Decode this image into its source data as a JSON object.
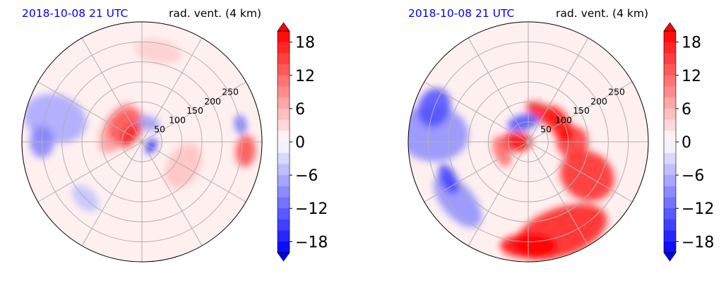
{
  "colors": {
    "title_left": "#0000ff",
    "title_right": "#000000",
    "neg_strong": "#0000ff",
    "neutral": "#ffffff",
    "pos_strong": "#ff0000",
    "grid": "#b0b0b0"
  },
  "chart_data": [
    {
      "type": "heatmap",
      "projection": "polar",
      "title_left": "2018-10-08 21 UTC",
      "title_right": "rad. vent. (4 km)",
      "range_rings": [
        50,
        100,
        150,
        200,
        250
      ],
      "range_max": 300,
      "radial_lines_deg": [
        0,
        30,
        60,
        90,
        120,
        150,
        180,
        210,
        240,
        270,
        300,
        330
      ],
      "colorbar": {
        "ticks": [
          "18",
          "12",
          "6",
          "0",
          "−6",
          "−12",
          "−18"
        ],
        "tick_values": [
          18,
          12,
          6,
          0,
          -6,
          -12,
          -18
        ],
        "vmin": -20,
        "vmax": 20,
        "levels": 20,
        "extend": "both"
      },
      "features": [
        {
          "az": 300,
          "r": 70,
          "w": 70,
          "h": 35,
          "v": 8
        },
        {
          "az": 315,
          "r": 55,
          "w": 50,
          "h": 40,
          "v": 13
        },
        {
          "az": 300,
          "r": 35,
          "w": 35,
          "h": 18,
          "v": 17
        },
        {
          "az": 20,
          "r": 50,
          "w": 28,
          "h": 18,
          "v": -8
        },
        {
          "az": 115,
          "r": 25,
          "w": 20,
          "h": 12,
          "v": -17
        },
        {
          "az": 285,
          "r": 225,
          "w": 60,
          "h": 80,
          "v": -7
        },
        {
          "az": 270,
          "r": 250,
          "w": 40,
          "h": 30,
          "v": -10
        },
        {
          "az": 95,
          "r": 260,
          "w": 40,
          "h": 25,
          "v": 14
        },
        {
          "az": 80,
          "r": 250,
          "w": 25,
          "h": 15,
          "v": -11
        },
        {
          "az": 120,
          "r": 120,
          "w": 60,
          "h": 40,
          "v": 5
        },
        {
          "az": 225,
          "r": 200,
          "w": 40,
          "h": 25,
          "v": -5
        },
        {
          "az": 10,
          "r": 230,
          "w": 60,
          "h": 30,
          "v": 4
        }
      ]
    },
    {
      "type": "heatmap",
      "projection": "polar",
      "title_left": "2018-10-08 21 UTC",
      "title_right": "rad. vent. (4 km)",
      "range_rings": [
        50,
        100,
        150,
        200,
        250
      ],
      "range_max": 300,
      "radial_lines_deg": [
        0,
        30,
        60,
        90,
        120,
        150,
        180,
        210,
        240,
        270,
        300,
        330
      ],
      "colorbar": {
        "ticks": [
          "18",
          "12",
          "6",
          "0",
          "−6",
          "−12",
          "−18"
        ],
        "tick_values": [
          18,
          12,
          6,
          0,
          -6,
          -12,
          -18
        ],
        "vmin": -20,
        "vmax": 20,
        "levels": 20,
        "extend": "both"
      },
      "features": [
        {
          "az": 275,
          "r": 240,
          "w": 70,
          "h": 90,
          "v": -9
        },
        {
          "az": 290,
          "r": 250,
          "w": 50,
          "h": 40,
          "v": -14
        },
        {
          "az": 230,
          "r": 230,
          "w": 80,
          "h": 40,
          "v": -9
        },
        {
          "az": 245,
          "r": 220,
          "w": 40,
          "h": 20,
          "v": -15
        },
        {
          "az": 160,
          "r": 240,
          "w": 120,
          "h": 60,
          "v": 18
        },
        {
          "az": 180,
          "r": 260,
          "w": 70,
          "h": 30,
          "v": 20
        },
        {
          "az": 120,
          "r": 170,
          "w": 60,
          "h": 70,
          "v": 17
        },
        {
          "az": 90,
          "r": 110,
          "w": 40,
          "h": 40,
          "v": 16
        },
        {
          "az": 60,
          "r": 90,
          "w": 50,
          "h": 25,
          "v": 19
        },
        {
          "az": 30,
          "r": 80,
          "w": 50,
          "h": 22,
          "v": 18
        },
        {
          "az": 270,
          "r": 30,
          "w": 25,
          "h": 40,
          "v": 20
        },
        {
          "az": 345,
          "r": 50,
          "w": 40,
          "h": 20,
          "v": -14
        },
        {
          "az": 250,
          "r": 70,
          "w": 40,
          "h": 20,
          "v": 12
        }
      ]
    }
  ]
}
